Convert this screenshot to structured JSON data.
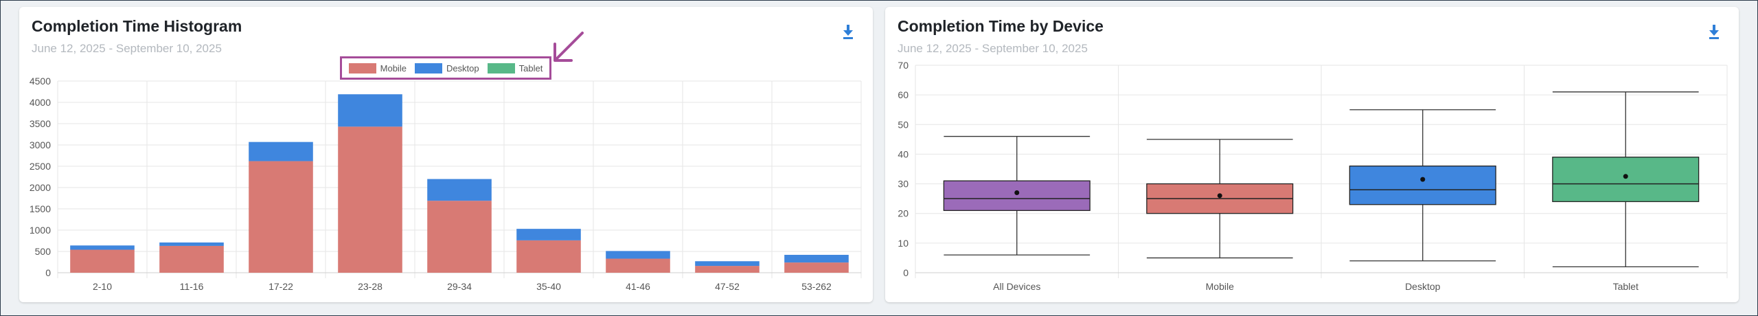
{
  "colors": {
    "mobile": "#d87a74",
    "desktop": "#3f86de",
    "tablet": "#58b888",
    "all_devices": "#9b6bb9",
    "annotation": "#a54c99",
    "download": "#2f7fd8"
  },
  "histogram": {
    "title": "Completion Time Histogram",
    "subtitle": "June 12, 2025 - September 10, 2025",
    "download_icon": "download-icon",
    "legend": [
      "Mobile",
      "Desktop",
      "Tablet"
    ]
  },
  "boxplot": {
    "title": "Completion Time by Device",
    "subtitle": "June 12, 2025 - September 10, 2025",
    "download_icon": "download-icon"
  },
  "chart_data": [
    {
      "type": "bar",
      "stacked": true,
      "categories": [
        "2-10",
        "11-16",
        "17-22",
        "23-28",
        "29-34",
        "35-40",
        "41-46",
        "47-52",
        "53-262"
      ],
      "series": [
        {
          "name": "Mobile",
          "values": [
            540,
            630,
            2620,
            3430,
            1690,
            760,
            330,
            160,
            240
          ]
        },
        {
          "name": "Desktop",
          "values": [
            100,
            80,
            450,
            760,
            510,
            270,
            180,
            110,
            180
          ]
        },
        {
          "name": "Tablet",
          "values": [
            0,
            0,
            0,
            0,
            0,
            0,
            0,
            0,
            0
          ]
        }
      ],
      "yticks": [
        0,
        500,
        1000,
        1500,
        2000,
        2500,
        3000,
        3500,
        4000,
        4500
      ],
      "ylim": [
        0,
        4500
      ],
      "grid": true,
      "legend_position": "top-center"
    },
    {
      "type": "boxplot",
      "categories": [
        "All Devices",
        "Mobile",
        "Desktop",
        "Tablet"
      ],
      "boxes": [
        {
          "name": "All Devices",
          "min": 6,
          "q1": 21,
          "median": 25,
          "q3": 31,
          "max": 46,
          "mean": 27
        },
        {
          "name": "Mobile",
          "min": 5,
          "q1": 20,
          "median": 25,
          "q3": 30,
          "max": 45,
          "mean": 26
        },
        {
          "name": "Desktop",
          "min": 4,
          "q1": 23,
          "median": 28,
          "q3": 36,
          "max": 55,
          "mean": 31.5
        },
        {
          "name": "Tablet",
          "min": 2,
          "q1": 24,
          "median": 30,
          "q3": 39,
          "max": 61,
          "mean": 32.5
        }
      ],
      "yticks": [
        0,
        10,
        20,
        30,
        40,
        50,
        60,
        70
      ],
      "ylim": [
        0,
        70
      ],
      "grid": true
    }
  ]
}
